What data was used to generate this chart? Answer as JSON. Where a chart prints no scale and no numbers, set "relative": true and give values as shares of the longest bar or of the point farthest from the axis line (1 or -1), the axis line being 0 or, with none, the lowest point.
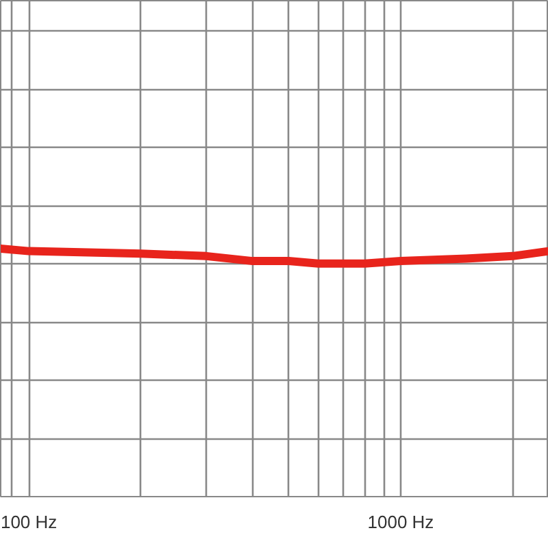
{
  "chart_data": {
    "type": "line",
    "relative": true,
    "log": "x",
    "grid": true,
    "tick_labels": "x",
    "line_style": "solid",
    "marker": "none",
    "xlim": [
      84,
      2500
    ],
    "xticks": [
      {
        "value": 90,
        "label": null
      },
      {
        "value": 100,
        "label": "100 Hz"
      },
      {
        "value": 200,
        "label": null
      },
      {
        "value": 300,
        "label": null
      },
      {
        "value": 400,
        "label": null
      },
      {
        "value": 500,
        "label": null
      },
      {
        "value": 600,
        "label": null
      },
      {
        "value": 700,
        "label": null
      },
      {
        "value": 800,
        "label": null
      },
      {
        "value": 900,
        "label": null
      },
      {
        "value": 1000,
        "label": "1000 Hz"
      },
      {
        "value": 2000,
        "label": null
      }
    ],
    "x": [
      84,
      100,
      200,
      300,
      400,
      500,
      600,
      700,
      800,
      1000,
      1500,
      2000,
      2500
    ],
    "series": [
      {
        "color": "#e8241c",
        "values": [
          1,
          0.99,
          0.98,
          0.97,
          0.95,
          0.95,
          0.94,
          0.94,
          0.94,
          0.95,
          0.96,
          0.97,
          0.99
        ]
      }
    ]
  }
}
